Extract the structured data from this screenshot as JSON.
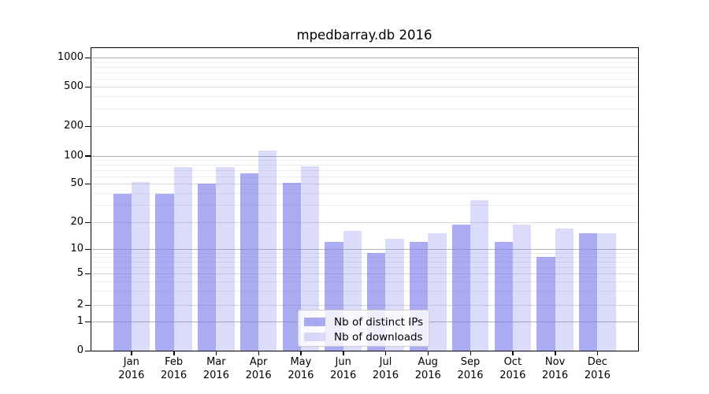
{
  "title": "mpedbarray.db 2016",
  "legend": {
    "entries": [
      {
        "label": "Nb of distinct IPs"
      },
      {
        "label": "Nb of downloads"
      }
    ]
  },
  "chart_data": {
    "type": "bar",
    "title": "mpedbarray.db 2016",
    "categories": [
      "Jan 2016",
      "Feb 2016",
      "Mar 2016",
      "Apr 2016",
      "May 2016",
      "Jun 2016",
      "Jul 2016",
      "Aug 2016",
      "Sep 2016",
      "Oct 2016",
      "Nov 2016",
      "Dec 2016"
    ],
    "x_tick_labels": [
      {
        "month": "Jan",
        "year": "2016"
      },
      {
        "month": "Feb",
        "year": "2016"
      },
      {
        "month": "Mar",
        "year": "2016"
      },
      {
        "month": "Apr",
        "year": "2016"
      },
      {
        "month": "May",
        "year": "2016"
      },
      {
        "month": "Jun",
        "year": "2016"
      },
      {
        "month": "Jul",
        "year": "2016"
      },
      {
        "month": "Aug",
        "year": "2016"
      },
      {
        "month": "Sep",
        "year": "2016"
      },
      {
        "month": "Oct",
        "year": "2016"
      },
      {
        "month": "Nov",
        "year": "2016"
      },
      {
        "month": "Dec",
        "year": "2016"
      }
    ],
    "series": [
      {
        "name": "Nb of distinct IPs",
        "color": "#7a7aeb",
        "alpha": 0.63,
        "values": [
          39,
          39,
          50,
          65,
          51,
          12,
          9,
          12,
          19,
          12,
          8,
          15
        ]
      },
      {
        "name": "Nb of downloads",
        "color": "#7a7aeb",
        "alpha": 0.27,
        "values": [
          52,
          75,
          76,
          113,
          77,
          16,
          13,
          15,
          34,
          19,
          17,
          15
        ]
      }
    ],
    "y_axis": {
      "scale": "symlog",
      "tick_labels": [
        "1000",
        "500",
        "200",
        "100",
        "50",
        "20",
        "10",
        "5",
        "2",
        "1",
        "0"
      ],
      "tick_values": [
        1000,
        500,
        200,
        100,
        50,
        20,
        10,
        5,
        2,
        1,
        0
      ],
      "minor_gridline_values": [
        900,
        800,
        700,
        600,
        400,
        300,
        90,
        80,
        70,
        60,
        40,
        30,
        9,
        8,
        7,
        6,
        4,
        3
      ],
      "range": [
        0,
        1200
      ]
    },
    "grid": true,
    "legend_position": "lower center"
  }
}
